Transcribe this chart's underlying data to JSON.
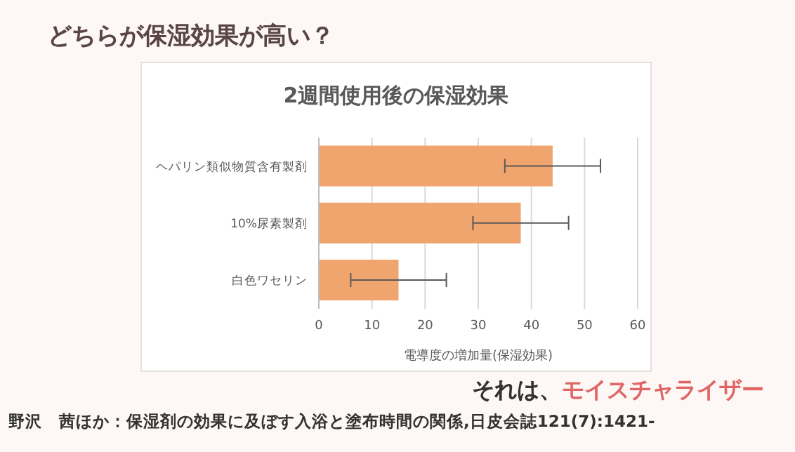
{
  "chart_data": {
    "type": "bar",
    "orientation": "horizontal",
    "title": "どちらが保湿効果が高い？",
    "subtitle": "2週間使用後の保湿効果",
    "xlabel": "電導度の増加量(保湿効果)",
    "categories": [
      "ヘパリン類似物質含有製剤",
      "10%尿素製剤",
      "白色ワセリン"
    ],
    "values": [
      44,
      38,
      15
    ],
    "errors": [
      9,
      9,
      9
    ],
    "color": "#f0a46e",
    "xlim": [
      0,
      60
    ],
    "xticks": [
      0,
      10,
      20,
      30,
      40,
      50,
      60
    ],
    "grid": "x",
    "annotations": [
      "それは、",
      "モイスチャライザー",
      "野沢　茜ほか：保湿剤の効果に及ぼす入浴と塗布時間の関係,日皮会誌121(7):1421-"
    ]
  }
}
